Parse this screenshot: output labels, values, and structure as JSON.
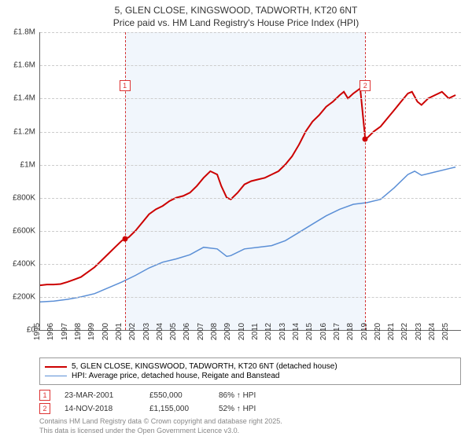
{
  "title": {
    "line1": "5, GLEN CLOSE, KINGSWOOD, TADWORTH, KT20 6NT",
    "line2": "Price paid vs. HM Land Registry's House Price Index (HPI)"
  },
  "chart": {
    "type": "line",
    "background_color": "#ffffff",
    "grid_color": "#cccccc",
    "grid_dash": "3,3",
    "axis_color": "#666666",
    "tick_fontsize": 10,
    "xlim": [
      1995,
      2025.9
    ],
    "ylim": [
      0,
      1800000
    ],
    "y_ticks": [
      {
        "v": 0,
        "label": "£0"
      },
      {
        "v": 200000,
        "label": "£200K"
      },
      {
        "v": 400000,
        "label": "£400K"
      },
      {
        "v": 600000,
        "label": "£600K"
      },
      {
        "v": 800000,
        "label": "£800K"
      },
      {
        "v": 1000000,
        "label": "£1M"
      },
      {
        "v": 1200000,
        "label": "£1.2M"
      },
      {
        "v": 1400000,
        "label": "£1.4M"
      },
      {
        "v": 1600000,
        "label": "£1.6M"
      },
      {
        "v": 1800000,
        "label": "£1.8M"
      }
    ],
    "x_ticks": [
      1995,
      1996,
      1997,
      1998,
      1999,
      2000,
      2001,
      2002,
      2003,
      2004,
      2005,
      2006,
      2007,
      2008,
      2009,
      2010,
      2011,
      2012,
      2013,
      2014,
      2015,
      2016,
      2017,
      2018,
      2019,
      2020,
      2021,
      2022,
      2023,
      2024,
      2025
    ],
    "shade": {
      "from": 2001.22,
      "to": 2018.87,
      "color": "#e8f0fa",
      "opacity": 0.6
    },
    "vlines": [
      {
        "x": 2001.22,
        "color": "#d33333",
        "dash": "4,3"
      },
      {
        "x": 2018.87,
        "color": "#d33333",
        "dash": "4,3"
      }
    ],
    "markers": [
      {
        "x": 2001.22,
        "label": "1",
        "y_pos": 0.84
      },
      {
        "x": 2018.87,
        "label": "2",
        "y_pos": 0.84
      }
    ],
    "points": [
      {
        "x": 2001.22,
        "y": 550000,
        "color": "#cc0000"
      },
      {
        "x": 2018.87,
        "y": 1155000,
        "color": "#cc0000"
      }
    ],
    "series": [
      {
        "name": "price_paid",
        "label": "5, GLEN CLOSE, KINGSWOOD, TADWORTH, KT20 6NT (detached house)",
        "color": "#cc0000",
        "line_width": 2,
        "data": [
          [
            1995,
            270000
          ],
          [
            1995.5,
            275000
          ],
          [
            1996,
            275000
          ],
          [
            1996.5,
            278000
          ],
          [
            1997,
            290000
          ],
          [
            1997.5,
            305000
          ],
          [
            1998,
            320000
          ],
          [
            1998.5,
            350000
          ],
          [
            1999,
            380000
          ],
          [
            1999.5,
            420000
          ],
          [
            2000,
            460000
          ],
          [
            2000.5,
            500000
          ],
          [
            2001,
            540000
          ],
          [
            2001.22,
            550000
          ],
          [
            2001.5,
            560000
          ],
          [
            2002,
            600000
          ],
          [
            2002.5,
            650000
          ],
          [
            2003,
            700000
          ],
          [
            2003.5,
            730000
          ],
          [
            2004,
            750000
          ],
          [
            2004.5,
            780000
          ],
          [
            2005,
            800000
          ],
          [
            2005.5,
            810000
          ],
          [
            2006,
            830000
          ],
          [
            2006.5,
            870000
          ],
          [
            2007,
            920000
          ],
          [
            2007.5,
            960000
          ],
          [
            2008,
            940000
          ],
          [
            2008.3,
            870000
          ],
          [
            2008.7,
            800000
          ],
          [
            2009,
            790000
          ],
          [
            2009.5,
            830000
          ],
          [
            2010,
            880000
          ],
          [
            2010.5,
            900000
          ],
          [
            2011,
            910000
          ],
          [
            2011.5,
            920000
          ],
          [
            2012,
            940000
          ],
          [
            2012.5,
            960000
          ],
          [
            2013,
            1000000
          ],
          [
            2013.5,
            1050000
          ],
          [
            2014,
            1120000
          ],
          [
            2014.5,
            1200000
          ],
          [
            2015,
            1260000
          ],
          [
            2015.5,
            1300000
          ],
          [
            2016,
            1350000
          ],
          [
            2016.5,
            1380000
          ],
          [
            2017,
            1420000
          ],
          [
            2017.3,
            1440000
          ],
          [
            2017.6,
            1400000
          ],
          [
            2018,
            1430000
          ],
          [
            2018.5,
            1460000
          ],
          [
            2018.87,
            1155000
          ],
          [
            2019,
            1160000
          ],
          [
            2019.5,
            1200000
          ],
          [
            2020,
            1230000
          ],
          [
            2020.5,
            1280000
          ],
          [
            2021,
            1330000
          ],
          [
            2021.5,
            1380000
          ],
          [
            2022,
            1430000
          ],
          [
            2022.3,
            1440000
          ],
          [
            2022.7,
            1380000
          ],
          [
            2023,
            1360000
          ],
          [
            2023.5,
            1400000
          ],
          [
            2024,
            1420000
          ],
          [
            2024.5,
            1440000
          ],
          [
            2025,
            1400000
          ],
          [
            2025.5,
            1420000
          ]
        ]
      },
      {
        "name": "hpi",
        "label": "HPI: Average price, detached house, Reigate and Banstead",
        "color": "#5b8fd6",
        "line_width": 1.5,
        "data": [
          [
            1995,
            170000
          ],
          [
            1996,
            175000
          ],
          [
            1997,
            185000
          ],
          [
            1998,
            200000
          ],
          [
            1999,
            220000
          ],
          [
            2000,
            255000
          ],
          [
            2001,
            290000
          ],
          [
            2002,
            330000
          ],
          [
            2003,
            375000
          ],
          [
            2004,
            410000
          ],
          [
            2005,
            430000
          ],
          [
            2006,
            455000
          ],
          [
            2007,
            500000
          ],
          [
            2008,
            490000
          ],
          [
            2008.7,
            445000
          ],
          [
            2009,
            450000
          ],
          [
            2010,
            490000
          ],
          [
            2011,
            500000
          ],
          [
            2012,
            510000
          ],
          [
            2013,
            540000
          ],
          [
            2014,
            590000
          ],
          [
            2015,
            640000
          ],
          [
            2016,
            690000
          ],
          [
            2017,
            730000
          ],
          [
            2018,
            760000
          ],
          [
            2019,
            770000
          ],
          [
            2020,
            790000
          ],
          [
            2021,
            860000
          ],
          [
            2022,
            940000
          ],
          [
            2022.5,
            960000
          ],
          [
            2023,
            935000
          ],
          [
            2024,
            955000
          ],
          [
            2025,
            975000
          ],
          [
            2025.5,
            985000
          ]
        ]
      }
    ]
  },
  "legend": {
    "border_color": "#999999",
    "items": [
      {
        "color": "#cc0000",
        "width": 2,
        "label": "5, GLEN CLOSE, KINGSWOOD, TADWORTH, KT20 6NT (detached house)"
      },
      {
        "color": "#5b8fd6",
        "width": 1.5,
        "label": "HPI: Average price, detached house, Reigate and Banstead"
      }
    ]
  },
  "transactions": [
    {
      "num": "1",
      "date": "23-MAR-2001",
      "price": "£550,000",
      "pct": "86% ↑ HPI"
    },
    {
      "num": "2",
      "date": "14-NOV-2018",
      "price": "£1,155,000",
      "pct": "52% ↑ HPI"
    }
  ],
  "footer": {
    "line1": "Contains HM Land Registry data © Crown copyright and database right 2025.",
    "line2": "This data is licensed under the Open Government Licence v3.0."
  }
}
